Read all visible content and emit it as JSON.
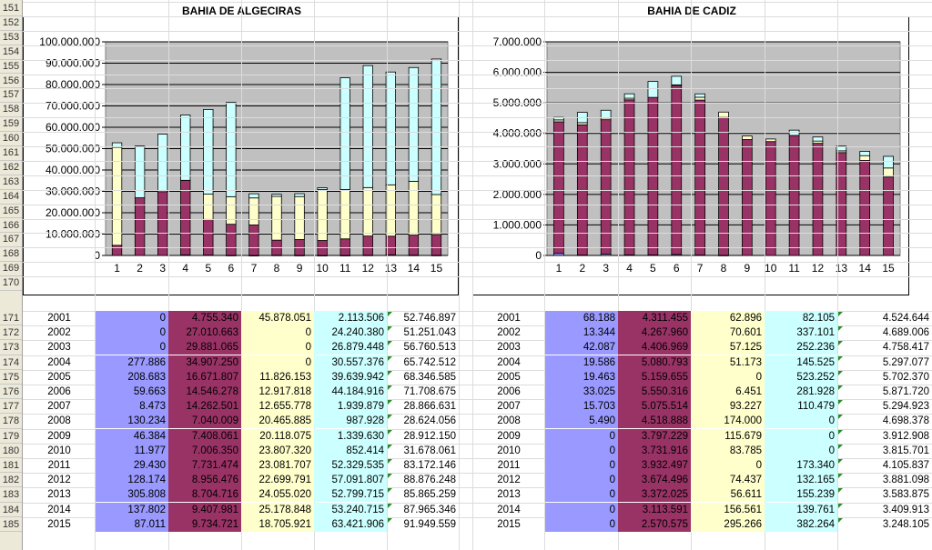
{
  "sheet": {
    "row_numbers": [
      "151",
      "152",
      "153",
      "154",
      "155",
      "156",
      "157",
      "158",
      "159",
      "160",
      "161",
      "162",
      "163",
      "164",
      "165",
      "166",
      "167",
      "168",
      "169",
      "170",
      "171",
      "172",
      "173",
      "174",
      "175",
      "176",
      "177",
      "178",
      "179",
      "180",
      "181",
      "182",
      "183",
      "184",
      "185"
    ]
  },
  "colors": {
    "blue": "#9999ff",
    "maroon": "#993366",
    "cream": "#ffffcc",
    "cyan": "#ccffff",
    "plot_bg": "#c0c0c0"
  },
  "chart_data": [
    {
      "type": "bar",
      "stacked": true,
      "title": "BAHIA DE ALGECIRAS",
      "categories": [
        "1",
        "2",
        "3",
        "4",
        "5",
        "6",
        "7",
        "8",
        "9",
        "10",
        "11",
        "12",
        "13",
        "14",
        "15"
      ],
      "y_ticks": [
        "0",
        "10.000.000",
        "20.000.000",
        "30.000.000",
        "40.000.000",
        "50.000.000",
        "60.000.000",
        "70.000.000",
        "80.000.000",
        "90.000.000",
        "100.000.000"
      ],
      "ylim": [
        0,
        100000000
      ],
      "grid": true,
      "series_colors": [
        "#9999ff",
        "#993366",
        "#ffffcc",
        "#ccffff"
      ],
      "series": [
        {
          "values": [
            0,
            0,
            0,
            277886,
            208683,
            59663,
            8473,
            130234,
            46384,
            11977,
            29430,
            128174,
            305808,
            137802,
            87011
          ]
        },
        {
          "values": [
            4755340,
            27010663,
            29881065,
            34907250,
            16671807,
            14546278,
            14262501,
            7040009,
            7408061,
            7006350,
            7731474,
            8956476,
            8704716,
            9407981,
            9734721
          ]
        },
        {
          "values": [
            45878051,
            0,
            0,
            0,
            11826153,
            12917818,
            12655778,
            20465885,
            20118075,
            23807320,
            23081707,
            22699791,
            24055020,
            25178848,
            18705921
          ]
        },
        {
          "values": [
            2113506,
            24240380,
            26879448,
            30557376,
            39639942,
            44184916,
            1939879,
            987928,
            1339630,
            852414,
            52329535,
            57091807,
            52799715,
            53240715,
            63421906
          ]
        }
      ]
    },
    {
      "type": "bar",
      "stacked": true,
      "title": "BAHIA DE CADIZ",
      "categories": [
        "1",
        "2",
        "3",
        "4",
        "5",
        "6",
        "7",
        "8",
        "9",
        "10",
        "11",
        "12",
        "13",
        "14",
        "15"
      ],
      "y_ticks": [
        "0",
        "1.000.000",
        "2.000.000",
        "3.000.000",
        "4.000.000",
        "5.000.000",
        "6.000.000",
        "7.000.000"
      ],
      "ylim": [
        0,
        7000000
      ],
      "grid": true,
      "series_colors": [
        "#9999ff",
        "#993366",
        "#ffffcc",
        "#ccffff"
      ],
      "series": [
        {
          "values": [
            68188,
            13344,
            42087,
            19586,
            19463,
            33025,
            15703,
            5490,
            0,
            0,
            0,
            0,
            0,
            0,
            0
          ]
        },
        {
          "values": [
            4311455,
            4267960,
            4406969,
            5080793,
            5159655,
            5550316,
            5075514,
            4518888,
            3797229,
            3731916,
            3932497,
            3674496,
            3372025,
            3113591,
            2570575
          ]
        },
        {
          "values": [
            62896,
            70601,
            57125,
            51173,
            0,
            6451,
            93227,
            174000,
            115679,
            83785,
            0,
            74437,
            56611,
            156561,
            295266
          ]
        },
        {
          "values": [
            82105,
            337101,
            252236,
            145525,
            523252,
            281928,
            110479,
            0,
            0,
            0,
            173340,
            132165,
            155239,
            139761,
            382264
          ]
        }
      ]
    }
  ],
  "table_algeciras": {
    "rows": [
      {
        "row": "171",
        "year": "2001",
        "c1": "0",
        "c2": "4.755.340",
        "c3": "45.878.051",
        "c4": "2.113.506",
        "total": "52.746.897"
      },
      {
        "row": "172",
        "year": "2002",
        "c1": "0",
        "c2": "27.010.663",
        "c3": "0",
        "c4": "24.240.380",
        "total": "51.251.043"
      },
      {
        "row": "173",
        "year": "2003",
        "c1": "0",
        "c2": "29.881.065",
        "c3": "0",
        "c4": "26.879.448",
        "total": "56.760.513"
      },
      {
        "row": "174",
        "year": "2004",
        "c1": "277.886",
        "c2": "34.907.250",
        "c3": "0",
        "c4": "30.557.376",
        "total": "65.742.512"
      },
      {
        "row": "175",
        "year": "2005",
        "c1": "208.683",
        "c2": "16.671.807",
        "c3": "11.826.153",
        "c4": "39.639.942",
        "total": "68.346.585"
      },
      {
        "row": "176",
        "year": "2006",
        "c1": "59.663",
        "c2": "14.546.278",
        "c3": "12.917.818",
        "c4": "44.184.916",
        "total": "71.708.675"
      },
      {
        "row": "177",
        "year": "2007",
        "c1": "8.473",
        "c2": "14.262.501",
        "c3": "12.655.778",
        "c4": "1.939.879",
        "total": "28.866.631"
      },
      {
        "row": "178",
        "year": "2008",
        "c1": "130.234",
        "c2": "7.040.009",
        "c3": "20.465.885",
        "c4": "987.928",
        "total": "28.624.056"
      },
      {
        "row": "179",
        "year": "2009",
        "c1": "46.384",
        "c2": "7.408.061",
        "c3": "20.118.075",
        "c4": "1.339.630",
        "total": "28.912.150"
      },
      {
        "row": "180",
        "year": "2010",
        "c1": "11.977",
        "c2": "7.006.350",
        "c3": "23.807.320",
        "c4": "852.414",
        "total": "31.678.061"
      },
      {
        "row": "181",
        "year": "2011",
        "c1": "29.430",
        "c2": "7.731.474",
        "c3": "23.081.707",
        "c4": "52.329.535",
        "total": "83.172.146"
      },
      {
        "row": "182",
        "year": "2012",
        "c1": "128.174",
        "c2": "8.956.476",
        "c3": "22.699.791",
        "c4": "57.091.807",
        "total": "88.876.248"
      },
      {
        "row": "183",
        "year": "2013",
        "c1": "305.808",
        "c2": "8.704.716",
        "c3": "24.055.020",
        "c4": "52.799.715",
        "total": "85.865.259"
      },
      {
        "row": "184",
        "year": "2014",
        "c1": "137.802",
        "c2": "9.407.981",
        "c3": "25.178.848",
        "c4": "53.240.715",
        "total": "87.965.346"
      },
      {
        "row": "185",
        "year": "2015",
        "c1": "87.011",
        "c2": "9.734.721",
        "c3": "18.705.921",
        "c4": "63.421.906",
        "total": "91.949.559"
      }
    ]
  },
  "table_cadiz": {
    "rows": [
      {
        "year": "2001",
        "c1": "68.188",
        "c2": "4.311.455",
        "c3": "62.896",
        "c4": "82.105",
        "total": "4.524.644"
      },
      {
        "year": "2002",
        "c1": "13.344",
        "c2": "4.267.960",
        "c3": "70.601",
        "c4": "337.101",
        "total": "4.689.006"
      },
      {
        "year": "2003",
        "c1": "42.087",
        "c2": "4.406.969",
        "c3": "57.125",
        "c4": "252.236",
        "total": "4.758.417"
      },
      {
        "year": "2004",
        "c1": "19.586",
        "c2": "5.080.793",
        "c3": "51.173",
        "c4": "145.525",
        "total": "5.297.077"
      },
      {
        "year": "2005",
        "c1": "19.463",
        "c2": "5.159.655",
        "c3": "0",
        "c4": "523.252",
        "total": "5.702.370"
      },
      {
        "year": "2006",
        "c1": "33.025",
        "c2": "5.550.316",
        "c3": "6.451",
        "c4": "281.928",
        "total": "5.871.720"
      },
      {
        "year": "2007",
        "c1": "15.703",
        "c2": "5.075.514",
        "c3": "93.227",
        "c4": "110.479",
        "total": "5.294.923"
      },
      {
        "year": "2008",
        "c1": "5.490",
        "c2": "4.518.888",
        "c3": "174.000",
        "c4": "0",
        "total": "4.698.378"
      },
      {
        "year": "2009",
        "c1": "0",
        "c2": "3.797.229",
        "c3": "115.679",
        "c4": "0",
        "total": "3.912.908"
      },
      {
        "year": "2010",
        "c1": "0",
        "c2": "3.731.916",
        "c3": "83.785",
        "c4": "0",
        "total": "3.815.701"
      },
      {
        "year": "2011",
        "c1": "0",
        "c2": "3.932.497",
        "c3": "0",
        "c4": "173.340",
        "total": "4.105.837"
      },
      {
        "year": "2012",
        "c1": "0",
        "c2": "3.674.496",
        "c3": "74.437",
        "c4": "132.165",
        "total": "3.881.098"
      },
      {
        "year": "2013",
        "c1": "0",
        "c2": "3.372.025",
        "c3": "56.611",
        "c4": "155.239",
        "total": "3.583.875"
      },
      {
        "year": "2014",
        "c1": "0",
        "c2": "3.113.591",
        "c3": "156.561",
        "c4": "139.761",
        "total": "3.409.913"
      },
      {
        "year": "2015",
        "c1": "0",
        "c2": "2.570.575",
        "c3": "295.266",
        "c4": "382.264",
        "total": "3.248.105"
      }
    ]
  }
}
